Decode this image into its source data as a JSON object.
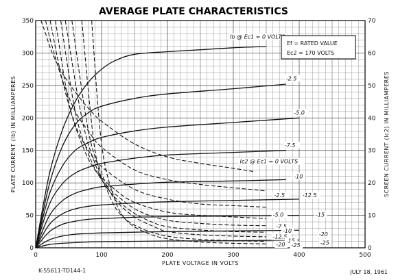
{
  "chart_data": {
    "type": "line",
    "title": "AVERAGE PLATE CHARACTERISTICS",
    "xlabel": "PLATE VOLTAGE IN VOLTS",
    "ylabel": "PLATE CURRENT (Ib) IN MILLIAMPERES",
    "y2label": "SCREEN CURRENT (Ic2) IN MILLIAMPERES",
    "xlim": [
      0,
      500
    ],
    "ylim": [
      0,
      350
    ],
    "y2lim": [
      0,
      70
    ],
    "xticks": [
      "0",
      "100",
      "200",
      "300",
      "400",
      "500"
    ],
    "yticks": [
      "0",
      "50",
      "100",
      "150",
      "200",
      "250",
      "300",
      "350"
    ],
    "y2ticks": [
      "0",
      "10",
      "20",
      "30",
      "40",
      "50",
      "60",
      "70"
    ],
    "grid": true,
    "conditions": [
      "Ef = RATED VALUE",
      "Ec2 = 170 VOLTS"
    ],
    "footnote_left": "K-55611-TD144-1",
    "footnote_right": "JULY 18, 1961",
    "plate_curves": [
      {
        "label": "Ib @ Ec1 = 0 VOLTS",
        "x": [
          0,
          20,
          40,
          60,
          80,
          100,
          120,
          150,
          200,
          250,
          300,
          350
        ],
        "y": [
          0,
          110,
          180,
          225,
          255,
          275,
          288,
          298,
          302,
          305,
          308,
          310
        ]
      },
      {
        "label": "-2.5",
        "x": [
          0,
          20,
          40,
          60,
          80,
          100,
          150,
          200,
          300,
          380
        ],
        "y": [
          0,
          95,
          155,
          190,
          208,
          218,
          230,
          237,
          245,
          252
        ]
      },
      {
        "label": "-5.0",
        "x": [
          0,
          20,
          40,
          60,
          80,
          100,
          150,
          200,
          300,
          400
        ],
        "y": [
          0,
          80,
          125,
          150,
          162,
          170,
          180,
          186,
          193,
          200
        ]
      },
      {
        "label": "-7.5",
        "x": [
          0,
          20,
          40,
          60,
          80,
          100,
          150,
          200,
          300,
          380
        ],
        "y": [
          0,
          65,
          98,
          115,
          124,
          130,
          138,
          143,
          147,
          150
        ]
      },
      {
        "label": "-10",
        "x": [
          0,
          20,
          40,
          60,
          80,
          100,
          150,
          200,
          300,
          380
        ],
        "y": [
          0,
          48,
          72,
          84,
          90,
          94,
          98,
          101,
          103,
          105
        ]
      },
      {
        "label": "-12.5",
        "x": [
          0,
          20,
          40,
          60,
          80,
          100,
          150,
          200,
          300,
          400
        ],
        "y": [
          0,
          35,
          52,
          60,
          64,
          66,
          69,
          71,
          73,
          75
        ]
      },
      {
        "label": "-15",
        "x": [
          0,
          20,
          40,
          60,
          80,
          100,
          150,
          200,
          300,
          400
        ],
        "y": [
          0,
          24,
          36,
          41,
          44,
          45,
          47,
          48,
          49,
          50
        ]
      },
      {
        "label": "-20",
        "x": [
          0,
          20,
          40,
          60,
          80,
          100,
          150,
          200,
          300,
          400
        ],
        "y": [
          0,
          12,
          18,
          21,
          22,
          23,
          24,
          25,
          26,
          27
        ]
      },
      {
        "label": "-25",
        "x": [
          0,
          20,
          40,
          60,
          80,
          100,
          150,
          200,
          300,
          400
        ],
        "y": [
          0,
          5,
          7,
          8,
          9,
          9.5,
          10,
          10.5,
          11,
          12
        ]
      }
    ],
    "screen_curves": [
      {
        "label": "Ic2 @ Ec1 = 0 VOLTS",
        "x": [
          8,
          15,
          25,
          40,
          60,
          80,
          100,
          150,
          200,
          250,
          300,
          330
        ],
        "y2": [
          70,
          66,
          60,
          54,
          48,
          43,
          39,
          32,
          28,
          26,
          24.5,
          23.5
        ]
      },
      {
        "label": "-2.5",
        "x": [
          15,
          25,
          40,
          60,
          80,
          100,
          150,
          200,
          250,
          300,
          350
        ],
        "y2": [
          70,
          62,
          52,
          42,
          36,
          31,
          24,
          21,
          19.5,
          18.5,
          17.5
        ]
      },
      {
        "label": "-5.0",
        "x": [
          22,
          40,
          60,
          80,
          100,
          150,
          200,
          250,
          300,
          350
        ],
        "y2": [
          70,
          52,
          38,
          30,
          25,
          18,
          15,
          13.5,
          13,
          12.5
        ]
      },
      {
        "label": "-7.5",
        "x": [
          30,
          50,
          70,
          90,
          120,
          150,
          200,
          250,
          300,
          350
        ],
        "y2": [
          70,
          45,
          32,
          24,
          18,
          14,
          11,
          10,
          9.5,
          9
        ]
      },
      {
        "label": "-10",
        "x": [
          38,
          60,
          80,
          100,
          130,
          160,
          200,
          250,
          300,
          350
        ],
        "y2": [
          70,
          42,
          29,
          21,
          15,
          11,
          8.5,
          7.5,
          7,
          6.8
        ]
      },
      {
        "label": "-12.5",
        "x": [
          45,
          70,
          90,
          110,
          140,
          170,
          200,
          250,
          300,
          350
        ],
        "y2": [
          70,
          40,
          26,
          18,
          12,
          8.5,
          6.5,
          5.5,
          5,
          4.8
        ]
      },
      {
        "label": "-15",
        "x": [
          55,
          80,
          100,
          120,
          150,
          180,
          200,
          250,
          300,
          350
        ],
        "y2": [
          70,
          36,
          23,
          15,
          9.5,
          6.5,
          5,
          4,
          3.6,
          3.4
        ]
      },
      {
        "label": "-20",
        "x": [
          70,
          90,
          110,
          130,
          160,
          200,
          250,
          300,
          350
        ],
        "y2": [
          70,
          30,
          17,
          10,
          6,
          3.6,
          2.6,
          2.2,
          2
        ]
      },
      {
        "label": "-25",
        "x": [
          85,
          100,
          120,
          140,
          170,
          200,
          250,
          300,
          350
        ],
        "y2": [
          70,
          32,
          15,
          8,
          4.5,
          2.8,
          1.8,
          1.4,
          1.2
        ]
      }
    ],
    "annotations": [
      {
        "text": "Ib @ Ec1 = 0 VOLTS",
        "x": 295,
        "y": 322
      },
      {
        "text": "-2.5",
        "x": 380,
        "y": 258
      },
      {
        "text": "-5.0",
        "x": 392,
        "y": 205
      },
      {
        "text": "-7.5",
        "x": 378,
        "y": 155
      },
      {
        "text": "Ic2 @ Ec1 = 0 VOLTS",
        "x": 310,
        "y": 130
      },
      {
        "text": "-10",
        "x": 392,
        "y": 107
      },
      {
        "text": "-12.5",
        "x": 405,
        "y": 78
      },
      {
        "text": "-2.5",
        "x": 362,
        "y": 78
      },
      {
        "text": "-5.0",
        "x": 360,
        "y": 48
      },
      {
        "text": "-15",
        "x": 425,
        "y": 48
      },
      {
        "text": "-7.5",
        "x": 365,
        "y": 30
      },
      {
        "text": "-10",
        "x": 375,
        "y": 23
      },
      {
        "text": "-20",
        "x": 430,
        "y": 18
      },
      {
        "text": "-12.5",
        "x": 360,
        "y": 14
      },
      {
        "text": "-15",
        "x": 380,
        "y": 8
      },
      {
        "text": "-25",
        "x": 432,
        "y": 5
      },
      {
        "text": "-20",
        "x": 365,
        "y": 2
      },
      {
        "text": "-25",
        "x": 388,
        "y": 1
      }
    ]
  },
  "colors": {
    "ink": "#111111",
    "grid": "#6a6a6a",
    "background": "#ffffff"
  }
}
